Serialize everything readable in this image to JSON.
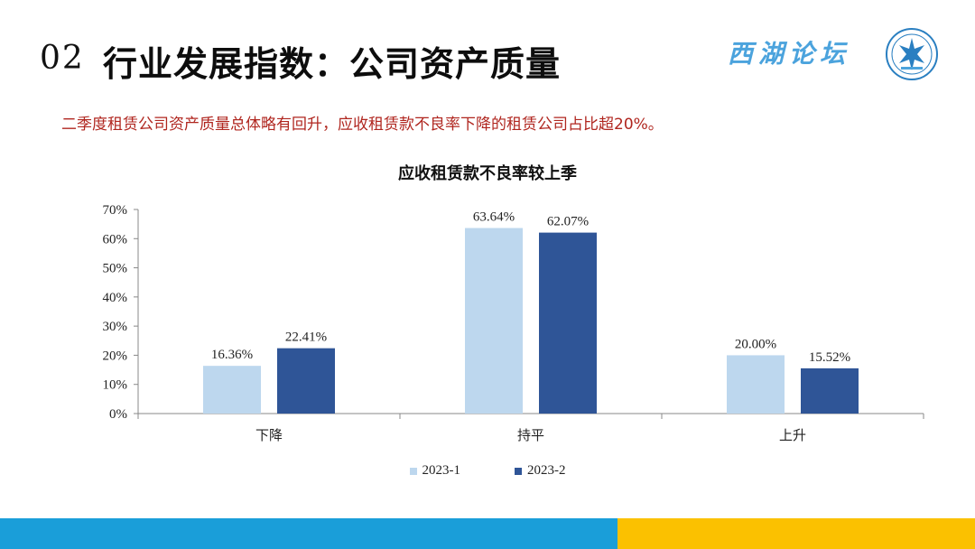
{
  "header": {
    "slide_number": "02",
    "title": "行业发展指数：公司资产质量",
    "brand": "西湖论坛"
  },
  "subtitle": "二季度租赁公司资产质量总体略有回升，应收租赁款不良率下降的租赁公司占比超20%。",
  "colors": {
    "series_1": "#bdd7ee",
    "series_2": "#2f5597",
    "accent_blue": "#1a9ed9",
    "accent_yellow": "#fbc100",
    "subtitle_red": "#b0261f"
  },
  "chart_data": {
    "type": "bar",
    "title": "应收租赁款不良率较上季",
    "categories": [
      "下降",
      "持平",
      "上升"
    ],
    "series": [
      {
        "name": "2023-1",
        "values": [
          16.36,
          63.64,
          20.0
        ],
        "labels": [
          "16.36%",
          "63.64%",
          "20.00%"
        ]
      },
      {
        "name": "2023-2",
        "values": [
          22.41,
          62.07,
          15.52
        ],
        "labels": [
          "22.41%",
          "62.07%",
          "15.52%"
        ]
      }
    ],
    "yticks": [
      "0%",
      "10%",
      "20%",
      "30%",
      "40%",
      "50%",
      "60%",
      "70%"
    ],
    "ylim": [
      0,
      70
    ],
    "xlabel": "",
    "ylabel": "",
    "legend_position": "bottom",
    "grid": false
  }
}
